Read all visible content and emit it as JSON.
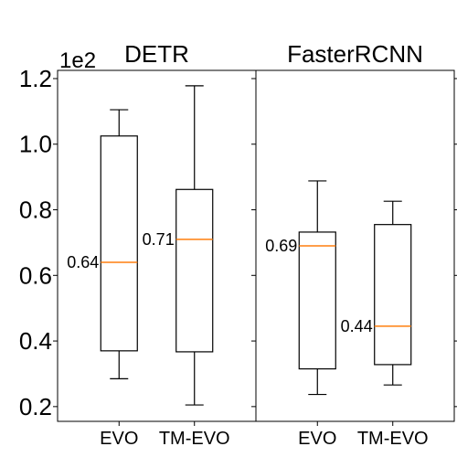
{
  "chart_data": {
    "type": "box",
    "y_multiplier_label": "1e2",
    "y_ticks": [
      "0.2",
      "0.4",
      "0.6",
      "0.8",
      "1.0",
      "1.2"
    ],
    "y_tick_values": [
      0.2,
      0.4,
      0.6,
      0.8,
      1.0,
      1.2
    ],
    "ylim": [
      0.155,
      1.225
    ],
    "colors": {
      "median": "#ff7f0e",
      "box": "#000000"
    },
    "panels": [
      {
        "title": "DETR",
        "categories": [
          "EVO",
          "TM-EVO"
        ],
        "boxes": [
          {
            "whisker_low": 0.285,
            "q1": 0.37,
            "median": 0.64,
            "q3": 1.025,
            "whisker_high": 1.105,
            "label": "0.64"
          },
          {
            "whisker_low": 0.205,
            "q1": 0.367,
            "median": 0.71,
            "q3": 0.862,
            "whisker_high": 1.178,
            "label": "0.71"
          }
        ]
      },
      {
        "title": "FasterRCNN",
        "categories": [
          "EVO",
          "TM-EVO"
        ],
        "boxes": [
          {
            "whisker_low": 0.237,
            "q1": 0.315,
            "median": 0.69,
            "q3": 0.732,
            "whisker_high": 0.888,
            "label": "0.69"
          },
          {
            "whisker_low": 0.266,
            "q1": 0.328,
            "median": 0.445,
            "q3": 0.755,
            "whisker_high": 0.826,
            "label": "0.44"
          }
        ]
      }
    ]
  }
}
